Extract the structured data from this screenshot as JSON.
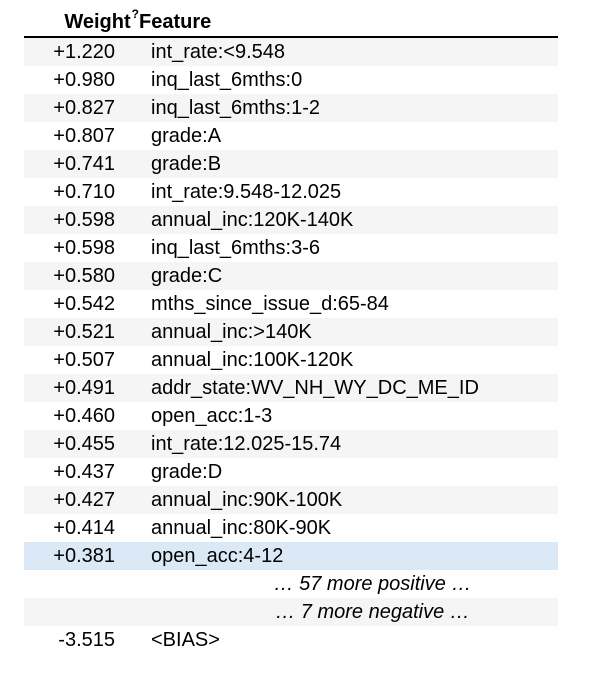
{
  "header": {
    "weight_label": "Weight",
    "weight_sup": "?",
    "feature_label": "Feature"
  },
  "rows": [
    {
      "weight": "+1.220",
      "feature": "int_rate:<9.548"
    },
    {
      "weight": "+0.980",
      "feature": "inq_last_6mths:0"
    },
    {
      "weight": "+0.827",
      "feature": "inq_last_6mths:1-2"
    },
    {
      "weight": "+0.807",
      "feature": "grade:A"
    },
    {
      "weight": "+0.741",
      "feature": "grade:B"
    },
    {
      "weight": "+0.710",
      "feature": "int_rate:9.548-12.025"
    },
    {
      "weight": "+0.598",
      "feature": "annual_inc:120K-140K"
    },
    {
      "weight": "+0.598",
      "feature": "inq_last_6mths:3-6"
    },
    {
      "weight": "+0.580",
      "feature": "grade:C"
    },
    {
      "weight": "+0.542",
      "feature": "mths_since_issue_d:65-84"
    },
    {
      "weight": "+0.521",
      "feature": "annual_inc:>140K"
    },
    {
      "weight": "+0.507",
      "feature": "annual_inc:100K-120K"
    },
    {
      "weight": "+0.491",
      "feature": "addr_state:WV_NH_WY_DC_ME_ID"
    },
    {
      "weight": "+0.460",
      "feature": "open_acc:1-3"
    },
    {
      "weight": "+0.455",
      "feature": "int_rate:12.025-15.74"
    },
    {
      "weight": "+0.437",
      "feature": "grade:D"
    },
    {
      "weight": "+0.427",
      "feature": "annual_inc:90K-100K"
    },
    {
      "weight": "+0.414",
      "feature": "annual_inc:80K-90K"
    },
    {
      "weight": "+0.381",
      "feature": "open_acc:4-12"
    }
  ],
  "more_positive": "… 57 more positive …",
  "more_negative": "… 7 more negative …",
  "bias": {
    "weight": "-3.515",
    "feature": "<BIAS>"
  },
  "colors": {
    "stripe": "#f5f5f5",
    "highlight": "#dbe9f7",
    "rule": "#000000"
  }
}
